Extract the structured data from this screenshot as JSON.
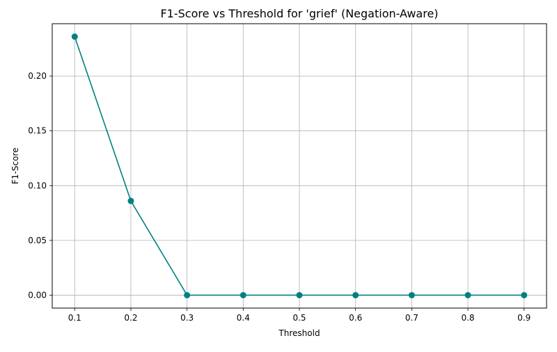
{
  "chart_data": {
    "type": "line",
    "title": "F1-Score vs Threshold for 'grief' (Negation-Aware)",
    "xlabel": "Threshold",
    "ylabel": "F1-Score",
    "x": [
      0.1,
      0.2,
      0.3,
      0.4,
      0.5,
      0.6,
      0.7,
      0.8,
      0.9
    ],
    "series": [
      {
        "values": [
          0.236,
          0.086,
          0.0,
          0.0,
          0.0,
          0.0,
          0.0,
          0.0,
          0.0
        ],
        "color": "#008080",
        "marker": "circle"
      }
    ],
    "xticks": [
      "0.1",
      "0.2",
      "0.3",
      "0.4",
      "0.5",
      "0.6",
      "0.7",
      "0.8",
      "0.9"
    ],
    "yticks": [
      "0.00",
      "0.05",
      "0.10",
      "0.15",
      "0.20"
    ],
    "xlim": [
      0.06,
      0.94
    ],
    "ylim": [
      -0.0118,
      0.2478
    ],
    "grid": true
  }
}
